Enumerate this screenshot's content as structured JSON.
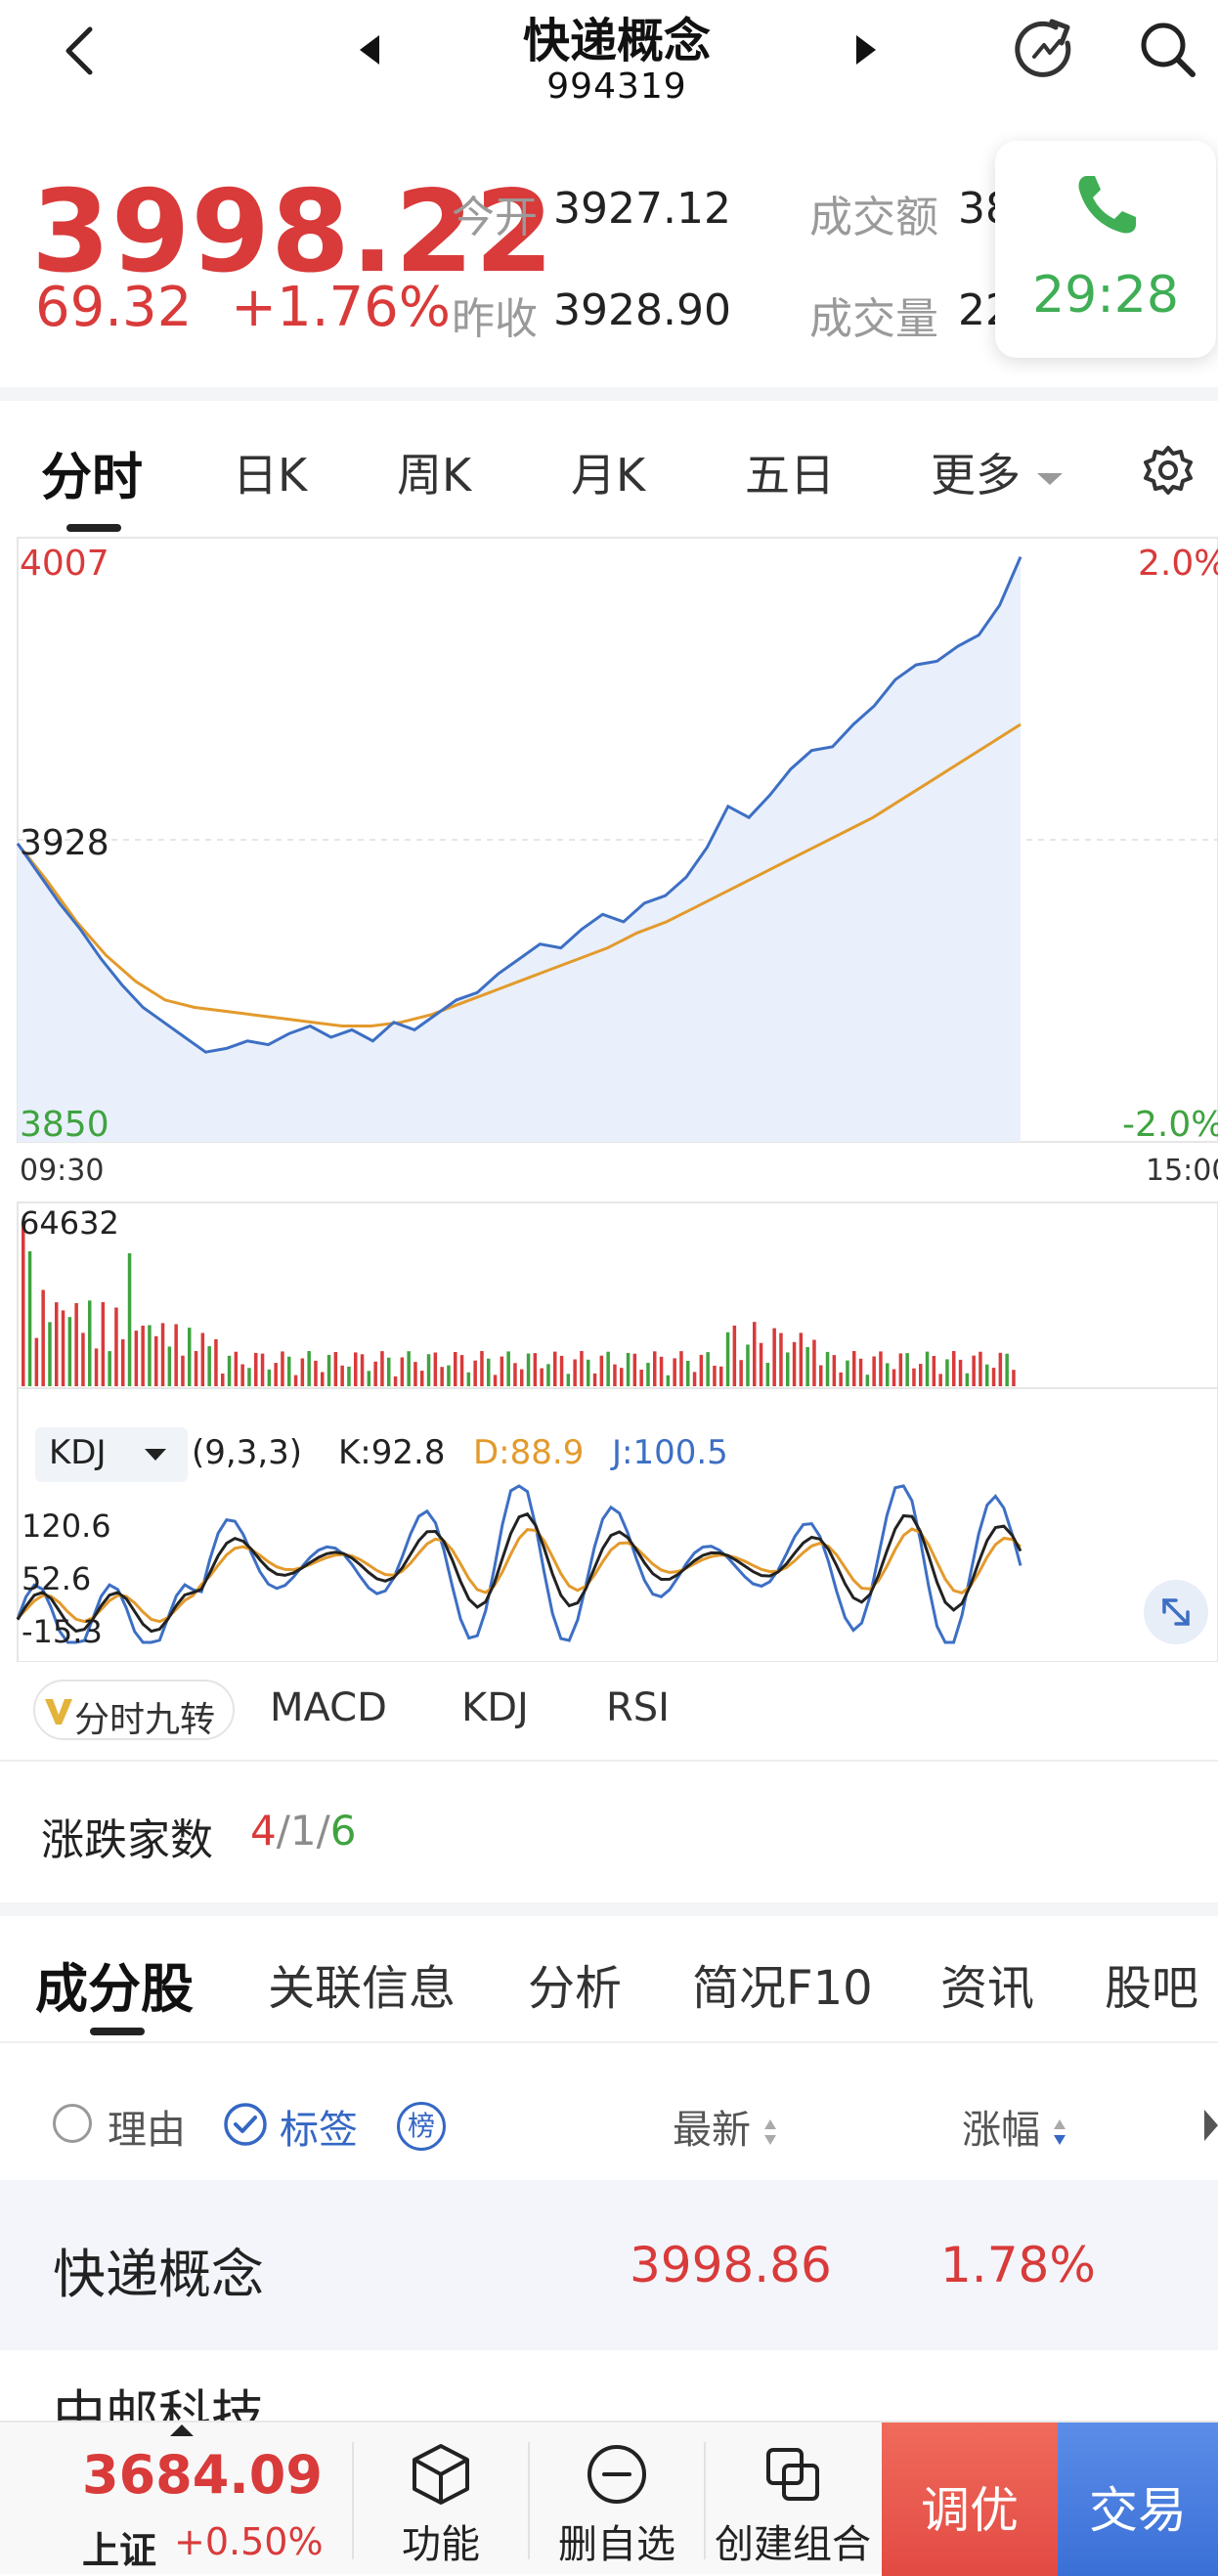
{
  "header": {
    "title": "快递概念",
    "code": "994319"
  },
  "quote": {
    "price": "3998.22",
    "change": "69.32",
    "change_pct": "+1.76%",
    "open_label": "今开",
    "open_value": "3927.12",
    "prev_close_label": "昨收",
    "prev_close_value": "3928.90",
    "turnover_label": "成交额",
    "turnover_value": "38",
    "volume_label": "成交量",
    "volume_value": "22"
  },
  "call": {
    "timer": "29:28",
    "color": "#3fae55"
  },
  "period_tabs": [
    "分时",
    "日K",
    "周K",
    "月K",
    "五日",
    "更多"
  ],
  "chart_data": {
    "type": "line",
    "price_axis": {
      "top": "4007",
      "mid": "3928",
      "bottom": "3850"
    },
    "pct_axis": {
      "top": "2.0%",
      "bottom": "-2.0%"
    },
    "x_axis": {
      "start": "09:30",
      "end": "15:00"
    },
    "ylim": [
      3850,
      4007
    ],
    "prev_close": 3928,
    "series": [
      {
        "values": [
          3928,
          3920,
          3912,
          3905,
          3897,
          3890,
          3884,
          3880,
          3876,
          3872,
          3873,
          3875,
          3874,
          3877,
          3879,
          3876,
          3878,
          3875,
          3880,
          3878,
          3882,
          3886,
          3888,
          3893,
          3897,
          3901,
          3900,
          3905,
          3909,
          3907,
          3912,
          3914,
          3919,
          3927,
          3938,
          3935,
          3941,
          3948,
          3953,
          3954,
          3960,
          3965,
          3972,
          3976,
          3977,
          3981,
          3984,
          3992,
          4005
        ]
      },
      {
        "values": [
          3928,
          3918,
          3907,
          3898,
          3891,
          3886,
          3884,
          3883,
          3882,
          3881,
          3880,
          3879,
          3879,
          3880,
          3882,
          3885,
          3888,
          3891,
          3894,
          3897,
          3900,
          3904,
          3907,
          3911,
          3915,
          3919,
          3923,
          3927,
          3931,
          3935,
          3940,
          3945,
          3950,
          3955,
          3960
        ]
      }
    ],
    "volume": {
      "max_label": "64632"
    },
    "kdj": {
      "name": "KDJ",
      "params": "(9,3,3)",
      "k": "K:92.8",
      "d": "D:88.9",
      "j": "J:100.5",
      "levels": [
        "120.6",
        "52.6",
        "-15.3"
      ]
    },
    "colors": {
      "price": "#3d6fc4",
      "avg": "#e39a2c",
      "fill": "#e9f0fb",
      "up": "#d93a3a",
      "down": "#3fa33f",
      "k": "#222222",
      "d": "#e39a2c",
      "j": "#3d6fc4"
    }
  },
  "indicator_tabs": {
    "nine_turn": "分时九转",
    "macd": "MACD",
    "kdj": "KDJ",
    "rsi": "RSI"
  },
  "adv_dec": {
    "label": "涨跌家数",
    "up": "4",
    "flat": "1",
    "down": "6",
    "sep": "/"
  },
  "component_tabs": [
    "成分股",
    "关联信息",
    "分析",
    "简况F10",
    "资讯",
    "股吧"
  ],
  "filter": {
    "reason": "理由",
    "tag": "标签",
    "rank": "榜",
    "latest": "最新",
    "change": "涨幅"
  },
  "rows": [
    {
      "name": "快递概念",
      "latest": "3998.86",
      "change": "1.78%"
    },
    {
      "name": "中邮科技",
      "latest": "",
      "change": ""
    }
  ],
  "bottom": {
    "index_value": "3684.09",
    "index_name": "上证",
    "index_change": "+0.50%",
    "func": "功能",
    "remove": "删自选",
    "create": "创建组合",
    "optimize": "调优",
    "trade": "交易"
  }
}
